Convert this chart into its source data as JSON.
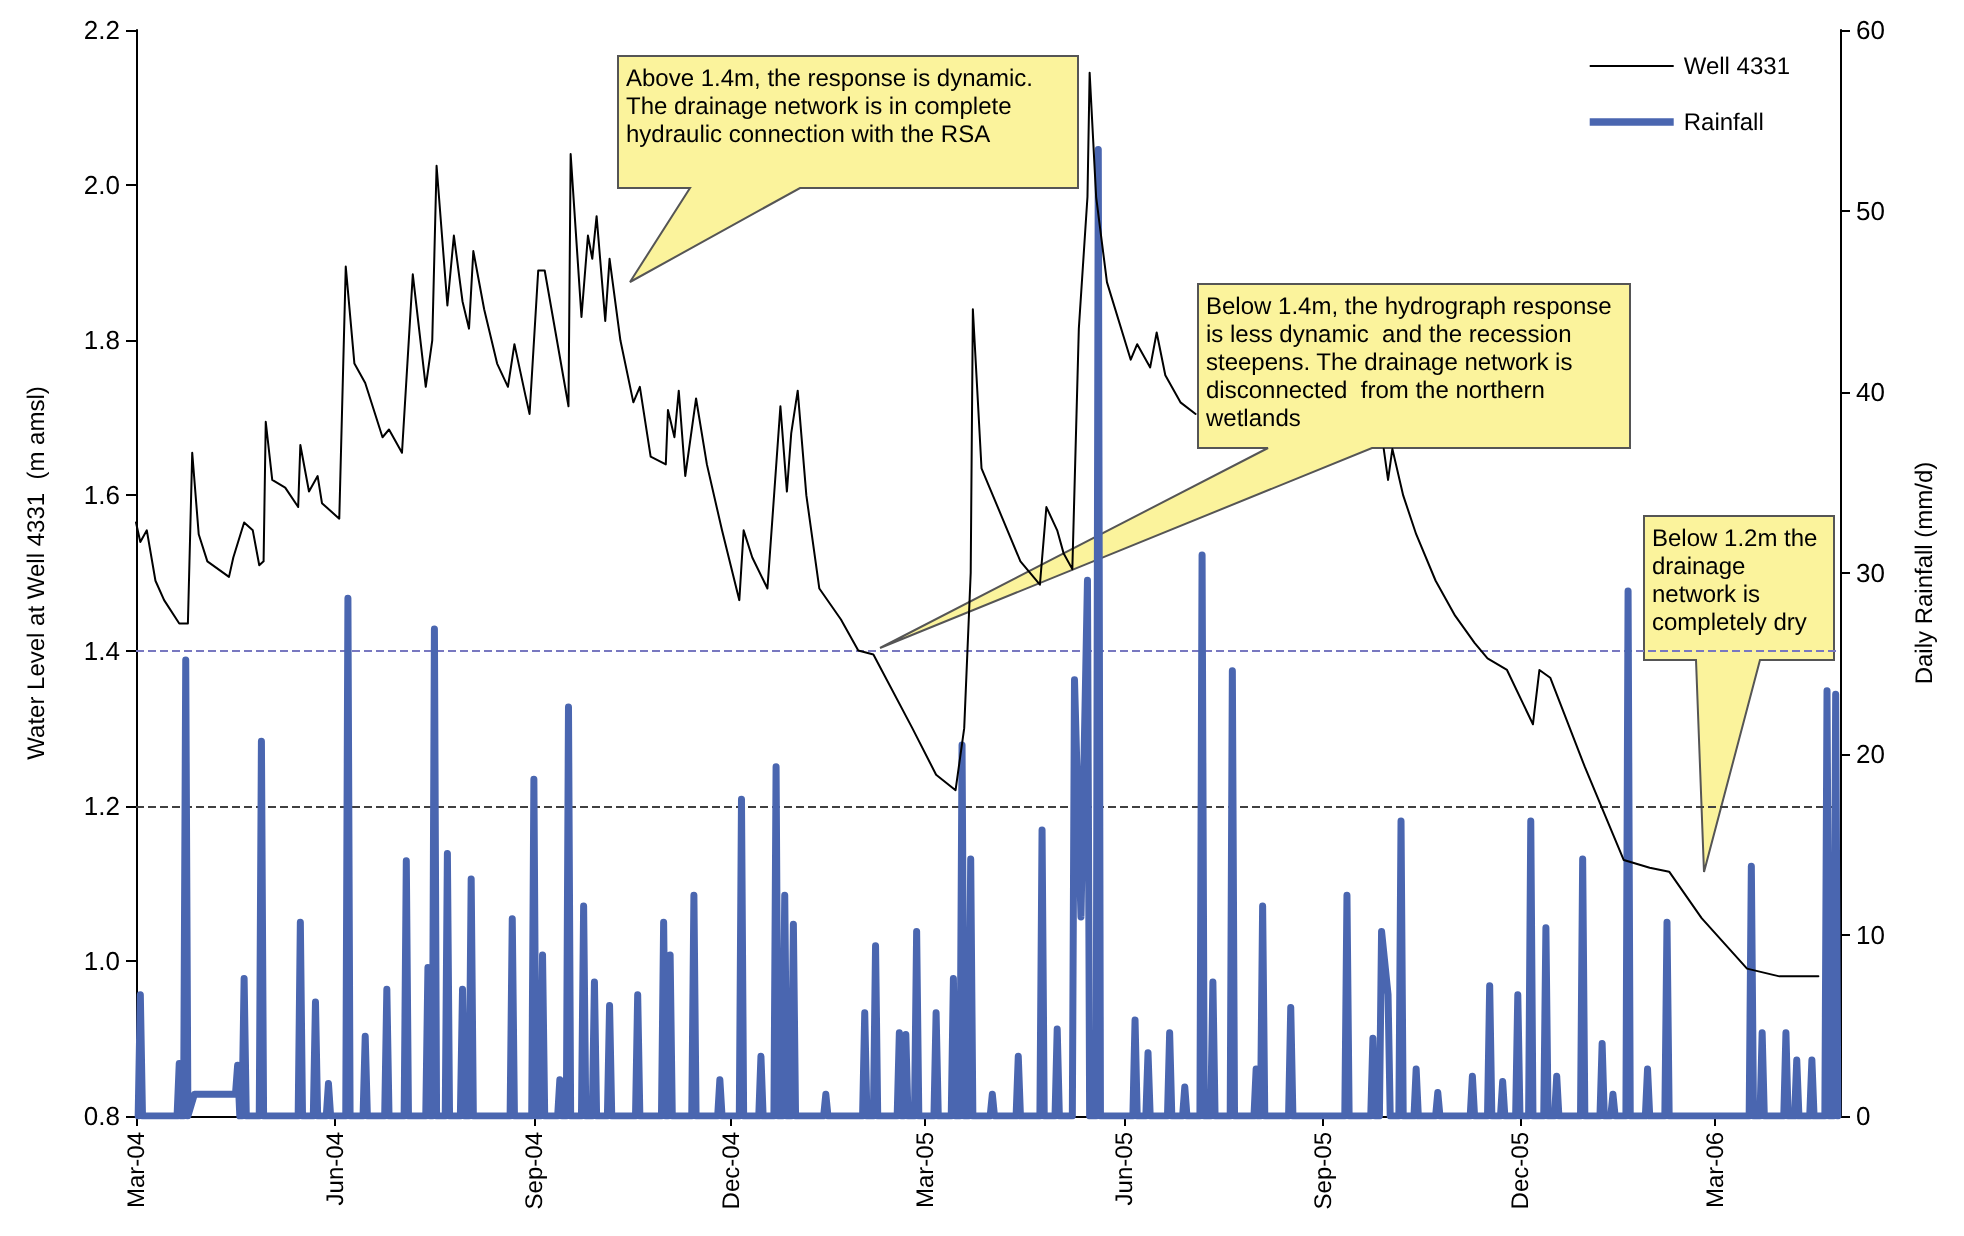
{
  "chart_data": {
    "type": "line",
    "ylabel": "Water Level at Well 4331  (m amsl)",
    "y2label": "Daily Rainfall (mm/d)",
    "xlim": [
      "2004-03-01",
      "2006-04-28"
    ],
    "xticks": [
      {
        "value": "2004-03-01",
        "label": "Mar-04"
      },
      {
        "value": "2004-06-01",
        "label": "Jun-04"
      },
      {
        "value": "2004-09-01",
        "label": "Sep-04"
      },
      {
        "value": "2004-12-01",
        "label": "Dec-04"
      },
      {
        "value": "2005-03-01",
        "label": "Mar-05"
      },
      {
        "value": "2005-06-01",
        "label": "Jun-05"
      },
      {
        "value": "2005-09-01",
        "label": "Sep-05"
      },
      {
        "value": "2005-12-01",
        "label": "Dec-05"
      },
      {
        "value": "2006-03-01",
        "label": "Mar-06"
      }
    ],
    "ylim": [
      0.8,
      2.2
    ],
    "yticks": [
      0.8,
      {
        "value": 1.0,
        "label": "1.0"
      },
      1.2,
      1.4,
      1.6,
      1.8,
      {
        "value": 2.0,
        "label": "2.0"
      },
      2.2
    ],
    "y2lim": [
      0,
      60
    ],
    "y2ticks": [
      0,
      10,
      20,
      30,
      40,
      50,
      60
    ],
    "grid": false,
    "legend": "top right",
    "marker": "none",
    "line_style": "solid",
    "series": [
      {
        "name": "Well 4331",
        "color": "#000000",
        "x": [
          "2004-03-01",
          "2004-03-03",
          "2004-03-06",
          "2004-03-10",
          "2004-03-14",
          "2004-03-21",
          "2004-03-25",
          "2004-03-27",
          "2004-03-30",
          "2004-04-03",
          "2004-04-13",
          "2004-04-15",
          "2004-04-20",
          "2004-04-24",
          "2004-04-27",
          "2004-04-29",
          "2004-04-30",
          "2004-05-03",
          "2004-05-09",
          "2004-05-15",
          "2004-05-16",
          "2004-05-20",
          "2004-05-24",
          "2004-05-26",
          "2004-06-03",
          "2004-06-06",
          "2004-06-10",
          "2004-06-15",
          "2004-06-23",
          "2004-06-26",
          "2004-07-02",
          "2004-07-07",
          "2004-07-13",
          "2004-07-16",
          "2004-07-18",
          "2004-07-23",
          "2004-07-26",
          "2004-07-30",
          "2004-08-02",
          "2004-08-04",
          "2004-08-09",
          "2004-08-15",
          "2004-08-20",
          "2004-08-23",
          "2004-08-28",
          "2004-08-30",
          "2004-09-03",
          "2004-09-06",
          "2004-09-17",
          "2004-09-18",
          "2004-09-23",
          "2004-09-26",
          "2004-09-28",
          "2004-09-30",
          "2004-10-04",
          "2004-10-06",
          "2004-10-11",
          "2004-10-17",
          "2004-10-20",
          "2004-10-25",
          "2004-11-01",
          "2004-11-02",
          "2004-11-05",
          "2004-11-07",
          "2004-11-10",
          "2004-11-15",
          "2004-11-20",
          "2004-11-27",
          "2004-12-05",
          "2004-12-07",
          "2004-12-11",
          "2004-12-18",
          "2004-12-24",
          "2004-12-27",
          "2004-12-29",
          "2005-01-01",
          "2005-01-05",
          "2005-01-11",
          "2005-01-21",
          "2005-01-29",
          "2005-02-05",
          "2005-02-23",
          "2005-03-06",
          "2005-03-15",
          "2005-03-19",
          "2005-03-22",
          "2005-03-23",
          "2005-03-27",
          "2005-04-05",
          "2005-04-14",
          "2005-04-23",
          "2005-04-26",
          "2005-05-01",
          "2005-05-04",
          "2005-05-08",
          "2005-05-11",
          "2005-05-15",
          "2005-05-16",
          "2005-05-19",
          "2005-05-24",
          "2005-06-04",
          "2005-06-07",
          "2005-06-13",
          "2005-06-16",
          "2005-06-20",
          "2005-06-27",
          "2005-07-04",
          "2005-08-15",
          "2005-09-29",
          "2005-10-01",
          "2005-10-03",
          "2005-10-08",
          "2005-10-14",
          "2005-10-23",
          "2005-11-01",
          "2005-11-10",
          "2005-11-16",
          "2005-11-25",
          "2005-12-07",
          "2005-12-10",
          "2005-12-15",
          "2005-12-31",
          "2006-01-18",
          "2006-01-30",
          "2006-02-08",
          "2006-02-23",
          "2006-03-16",
          "2006-03-31",
          "2006-04-18"
        ],
        "values": [
          1.565,
          1.54,
          1.555,
          1.49,
          1.465,
          1.435,
          1.435,
          1.655,
          1.55,
          1.515,
          1.495,
          1.52,
          1.565,
          1.555,
          1.51,
          1.515,
          1.695,
          1.62,
          1.61,
          1.585,
          1.665,
          1.605,
          1.625,
          1.59,
          1.57,
          1.895,
          1.77,
          1.745,
          1.675,
          1.685,
          1.655,
          1.885,
          1.74,
          1.8,
          2.025,
          1.845,
          1.935,
          1.85,
          1.815,
          1.915,
          1.84,
          1.77,
          1.74,
          1.795,
          1.73,
          1.705,
          1.89,
          1.89,
          1.715,
          2.04,
          1.83,
          1.935,
          1.905,
          1.96,
          1.825,
          1.905,
          1.8,
          1.72,
          1.74,
          1.65,
          1.64,
          1.71,
          1.675,
          1.735,
          1.625,
          1.725,
          1.64,
          1.555,
          1.465,
          1.555,
          1.52,
          1.48,
          1.715,
          1.605,
          1.68,
          1.735,
          1.6,
          1.48,
          1.44,
          1.4,
          1.395,
          1.3,
          1.24,
          1.22,
          1.3,
          1.5,
          1.84,
          1.635,
          1.575,
          1.515,
          1.485,
          1.585,
          1.555,
          1.525,
          1.505,
          1.815,
          1.985,
          2.145,
          1.985,
          1.875,
          1.775,
          1.795,
          1.765,
          1.81,
          1.755,
          1.72,
          1.705,
          null,
          1.66,
          1.62,
          1.66,
          1.6,
          1.55,
          1.49,
          1.445,
          1.41,
          1.39,
          1.375,
          1.305,
          1.375,
          1.365,
          1.25,
          1.13,
          1.12,
          1.115,
          1.055,
          0.99,
          0.98,
          0.98
        ]
      },
      {
        "name": "Rainfall",
        "color": "#4a66b0",
        "axis": "y2",
        "x": [
          "2004-03-02",
          "2004-03-03",
          "2004-03-04",
          "2004-03-20",
          "2004-03-21",
          "2004-03-22",
          "2004-03-23",
          "2004-03-24",
          "2004-03-25",
          "2004-03-28",
          "2004-04-16",
          "2004-04-17",
          "2004-04-18",
          "2004-04-19",
          "2004-04-20",
          "2004-04-21",
          "2004-04-27",
          "2004-04-28",
          "2004-04-29",
          "2004-05-15",
          "2004-05-16",
          "2004-05-17",
          "2004-05-22",
          "2004-05-23",
          "2004-05-24",
          "2004-05-28",
          "2004-05-29",
          "2004-05-30",
          "2004-06-06",
          "2004-06-07",
          "2004-06-08",
          "2004-06-14",
          "2004-06-15",
          "2004-06-16",
          "2004-06-24",
          "2004-06-25",
          "2004-06-26",
          "2004-07-03",
          "2004-07-04",
          "2004-07-05",
          "2004-07-13",
          "2004-07-14",
          "2004-07-15",
          "2004-07-16",
          "2004-07-17",
          "2004-07-18",
          "2004-07-22",
          "2004-07-23",
          "2004-07-24",
          "2004-07-29",
          "2004-07-30",
          "2004-07-31",
          "2004-08-02",
          "2004-08-03",
          "2004-08-04",
          "2004-08-21",
          "2004-08-22",
          "2004-08-23",
          "2004-08-31",
          "2004-09-01",
          "2004-09-02",
          "2004-09-04",
          "2004-09-05",
          "2004-09-06",
          "2004-09-12",
          "2004-09-13",
          "2004-09-14",
          "2004-09-16",
          "2004-09-17",
          "2004-09-18",
          "2004-09-23",
          "2004-09-24",
          "2004-09-25",
          "2004-09-28",
          "2004-09-29",
          "2004-09-30",
          "2004-10-05",
          "2004-10-06",
          "2004-10-07",
          "2004-10-18",
          "2004-10-19",
          "2004-10-20",
          "2004-10-30",
          "2004-10-31",
          "2004-11-01",
          "2004-11-02",
          "2004-11-03",
          "2004-11-04",
          "2004-11-13",
          "2004-11-14",
          "2004-11-15",
          "2004-11-25",
          "2004-11-26",
          "2004-11-27",
          "2004-12-05",
          "2004-12-06",
          "2004-12-07",
          "2004-12-14",
          "2004-12-15",
          "2004-12-16",
          "2004-12-21",
          "2004-12-22",
          "2004-12-23",
          "2004-12-25",
          "2004-12-26",
          "2004-12-27",
          "2004-12-29",
          "2004-12-30",
          "2004-12-31",
          "2005-01-13",
          "2005-01-14",
          "2005-01-15",
          "2005-01-31",
          "2005-02-01",
          "2005-02-02",
          "2005-02-05",
          "2005-02-06",
          "2005-02-07",
          "2005-02-16",
          "2005-02-17",
          "2005-02-18",
          "2005-02-19",
          "2005-02-20",
          "2005-02-21",
          "2005-02-24",
          "2005-02-25",
          "2005-02-26",
          "2005-03-05",
          "2005-03-06",
          "2005-03-07",
          "2005-03-13",
          "2005-03-14",
          "2005-03-15",
          "2005-03-17",
          "2005-03-18",
          "2005-03-19",
          "2005-03-21",
          "2005-03-22",
          "2005-03-23",
          "2005-03-31",
          "2005-04-01",
          "2005-04-02",
          "2005-04-12",
          "2005-04-13",
          "2005-04-14",
          "2005-04-23",
          "2005-04-24",
          "2005-04-25",
          "2005-04-30",
          "2005-05-01",
          "2005-05-02",
          "2005-05-08",
          "2005-05-09",
          "2005-05-12",
          "2005-05-15",
          "2005-05-16",
          "2005-05-19",
          "2005-05-20",
          "2005-05-21",
          "2005-06-05",
          "2005-06-06",
          "2005-06-07",
          "2005-06-11",
          "2005-06-12",
          "2005-06-13",
          "2005-06-21",
          "2005-06-22",
          "2005-06-23",
          "2005-06-28",
          "2005-06-29",
          "2005-06-30",
          "2005-07-06",
          "2005-07-07",
          "2005-07-08",
          "2005-07-11",
          "2005-07-12",
          "2005-07-13",
          "2005-07-20",
          "2005-07-21",
          "2005-07-22",
          "2005-07-31",
          "2005-08-01",
          "2005-08-02",
          "2005-08-03",
          "2005-08-04",
          "2005-08-05",
          "2005-08-16",
          "2005-08-17",
          "2005-08-18",
          "2005-09-11",
          "2005-09-12",
          "2005-09-13",
          "2005-09-23",
          "2005-09-24",
          "2005-09-25",
          "2005-09-27",
          "2005-09-28",
          "2005-10-01",
          "2005-10-02",
          "2005-10-06",
          "2005-10-07",
          "2005-10-08",
          "2005-10-13",
          "2005-10-14",
          "2005-10-15",
          "2005-10-23",
          "2005-10-24",
          "2005-10-25",
          "2005-11-08",
          "2005-11-09",
          "2005-11-10",
          "2005-11-16",
          "2005-11-17",
          "2005-11-18",
          "2005-11-22",
          "2005-11-23",
          "2005-11-24",
          "2005-11-29",
          "2005-11-30",
          "2005-12-01",
          "2005-12-05",
          "2005-12-06",
          "2005-12-07",
          "2005-12-12",
          "2005-12-13",
          "2005-12-14",
          "2005-12-17",
          "2005-12-18",
          "2005-12-19",
          "2005-12-29",
          "2005-12-30",
          "2005-12-31",
          "2006-01-07",
          "2006-01-08",
          "2006-01-09",
          "2006-01-12",
          "2006-01-13",
          "2006-01-14",
          "2006-01-19",
          "2006-01-20",
          "2006-01-21",
          "2006-01-28",
          "2006-01-29",
          "2006-01-30",
          "2006-02-06",
          "2006-02-07",
          "2006-02-08",
          "2006-03-17",
          "2006-03-18",
          "2006-03-19",
          "2006-03-22",
          "2006-03-23",
          "2006-03-24",
          "2006-04-02",
          "2006-04-03",
          "2006-04-04",
          "2006-04-07",
          "2006-04-08",
          "2006-04-09",
          "2006-04-14",
          "2006-04-15",
          "2006-04-16",
          "2006-04-21",
          "2006-04-22",
          "2006-04-23",
          "2006-04-25",
          "2006-04-26",
          "2006-04-27"
        ],
        "values": [
          0,
          6.7,
          0,
          0,
          2.9,
          0,
          0,
          25.2,
          0,
          1.2,
          1.2,
          2.8,
          0,
          0,
          7.6,
          0,
          0,
          20.7,
          0,
          0,
          10.7,
          0,
          0,
          6.3,
          0,
          0,
          1.8,
          0,
          0,
          28.6,
          0,
          0,
          4.4,
          0,
          0,
          7.0,
          0,
          0,
          14.1,
          0,
          0,
          8.2,
          0,
          0,
          26.9,
          0,
          0,
          14.5,
          0,
          0,
          7.0,
          0,
          0,
          13.1,
          0,
          0,
          10.9,
          0,
          0,
          18.6,
          0,
          0,
          8.9,
          0,
          0,
          2.0,
          0,
          0,
          22.6,
          0,
          0,
          11.6,
          0,
          0,
          7.4,
          0,
          0,
          6.1,
          0,
          0,
          6.7,
          0,
          0,
          10.7,
          0,
          0,
          8.9,
          0,
          0,
          12.2,
          0,
          0,
          2.0,
          0,
          0,
          17.5,
          0,
          0,
          3.3,
          0,
          0,
          19.3,
          0,
          0,
          12.2,
          0,
          0,
          10.6,
          0,
          0,
          1.2,
          0,
          0,
          5.7,
          0,
          0,
          9.4,
          0,
          0,
          4.6,
          0,
          0,
          4.5,
          0,
          0,
          10.2,
          0,
          0,
          5.7,
          0,
          0,
          7.6,
          0,
          0,
          20.5,
          0,
          0,
          14.2,
          0,
          0,
          1.2,
          0,
          0,
          3.3,
          0,
          0,
          15.8,
          0,
          0,
          4.8,
          0,
          0,
          24.1,
          11,
          29.6,
          0,
          0,
          53.4,
          0,
          0,
          5.3,
          0,
          0,
          3.5,
          0,
          0,
          4.6,
          0,
          0,
          1.6,
          0,
          0,
          31.0,
          0,
          0,
          7.4,
          0,
          0,
          24.6,
          0,
          0,
          2.6,
          0,
          0,
          11.6,
          0,
          0,
          6.0,
          0,
          0,
          12.2,
          0,
          0,
          4.3,
          0,
          0,
          10.2,
          6.7,
          0,
          0,
          16.3,
          0,
          0,
          2.6,
          0,
          0,
          1.3,
          0,
          0,
          2.2,
          0,
          0,
          7.2,
          0,
          0,
          1.9,
          0,
          0,
          6.7,
          0,
          0,
          16.3,
          0,
          0,
          10.4,
          0,
          0,
          2.2,
          0,
          0,
          14.2,
          0,
          0,
          4.0,
          0,
          0,
          1.2,
          0,
          0,
          29.0,
          0,
          0,
          2.6,
          0,
          0,
          10.7,
          0,
          0,
          13.8,
          0,
          0,
          4.6,
          0,
          0,
          4.6,
          0,
          0,
          3.1,
          0,
          0,
          3.1,
          0,
          0,
          23.5,
          0,
          0,
          23.3,
          0
        ]
      }
    ],
    "ref_lines": [
      {
        "axis": "y",
        "value": 1.4,
        "color": "#7878c0",
        "line_style": "dashed"
      },
      {
        "axis": "y",
        "value": 1.2,
        "color": "#404040",
        "line_style": "dashed"
      }
    ],
    "annotations": [
      "Above 1.4m, the response is dynamic. The drainage network is in complete hydraulic connection with the RSA",
      "Below 1.4m, the hydrograph response is less dynamic  and the recession steepens. The drainage network is disconnected  from the northern wetlands",
      "Below 1.2m the drainage network is completely dry"
    ]
  }
}
